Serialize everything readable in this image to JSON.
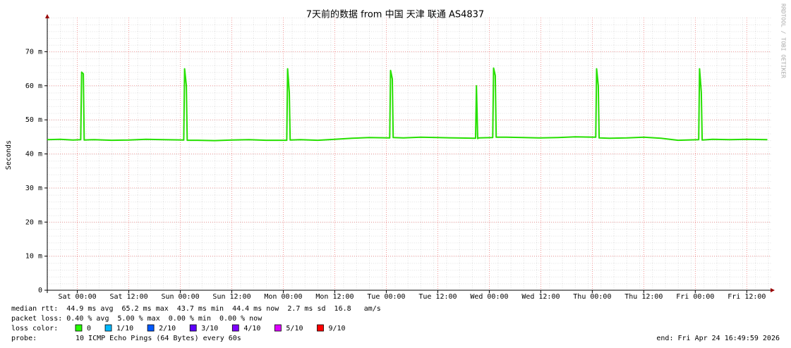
{
  "chart_data": {
    "type": "line",
    "title": "7天前的数据 from 中国 天津 联通 AS4837",
    "y_label": "Seconds",
    "side_note": "RRDTOOL / TOBI OETIKER",
    "x": [
      -7,
      -4,
      -1,
      0.8,
      1.0,
      1.4,
      1.6,
      4,
      8,
      12,
      16,
      20,
      24.8,
      25,
      25.4,
      25.6,
      28,
      32,
      36,
      40,
      44,
      48.8,
      49,
      49.4,
      49.6,
      52,
      56,
      60,
      64,
      68,
      72.8,
      73,
      73.4,
      73.6,
      76,
      80,
      84,
      88,
      92.8,
      93,
      93.3,
      93.5,
      96.8,
      97,
      97.4,
      97.6,
      100,
      104,
      108,
      112,
      116,
      120.8,
      121,
      121.4,
      121.6,
      124,
      128,
      132,
      136,
      140,
      144.8,
      145,
      145.4,
      145.6,
      148,
      152,
      156,
      160.8
    ],
    "series": [
      {
        "color": "#26e000",
        "values": [
          44.2,
          44.3,
          44.1,
          44.2,
          64.0,
          63.5,
          44.1,
          44.2,
          44.0,
          44.1,
          44.3,
          44.2,
          44.1,
          65.0,
          60.0,
          44.0,
          44.0,
          43.9,
          44.1,
          44.2,
          44.0,
          44.0,
          65.0,
          58.0,
          44.1,
          44.2,
          44.0,
          44.3,
          44.6,
          44.8,
          44.7,
          64.5,
          62.0,
          44.8,
          44.7,
          44.9,
          44.8,
          44.7,
          44.6,
          60.0,
          44.5,
          44.7,
          44.8,
          65.2,
          63.0,
          44.9,
          44.9,
          44.8,
          44.7,
          44.8,
          45.0,
          44.9,
          65.0,
          60.0,
          44.7,
          44.6,
          44.7,
          44.9,
          44.6,
          44.0,
          44.2,
          65.0,
          58.0,
          44.1,
          44.3,
          44.2,
          44.3,
          44.2
        ]
      }
    ],
    "xlim": [
      -7,
      161.7
    ],
    "xticks": [
      {
        "value": 0,
        "label": "Sat 00:00"
      },
      {
        "value": 12,
        "label": "Sat 12:00"
      },
      {
        "value": 24,
        "label": "Sun 00:00"
      },
      {
        "value": 36,
        "label": "Sun 12:00"
      },
      {
        "value": 48,
        "label": "Mon 00:00"
      },
      {
        "value": 60,
        "label": "Mon 12:00"
      },
      {
        "value": 72,
        "label": "Tue 00:00"
      },
      {
        "value": 84,
        "label": "Tue 12:00"
      },
      {
        "value": 96,
        "label": "Wed 00:00"
      },
      {
        "value": 108,
        "label": "Wed 12:00"
      },
      {
        "value": 120,
        "label": "Thu 00:00"
      },
      {
        "value": 132,
        "label": "Thu 12:00"
      },
      {
        "value": 144,
        "label": "Fri 00:00"
      },
      {
        "value": 156,
        "label": "Fri 12:00"
      }
    ],
    "ylim": [
      0,
      80
    ],
    "yticks": [
      0,
      {
        "value": 10,
        "label": "10 m"
      },
      {
        "value": 20,
        "label": "20 m"
      },
      {
        "value": 30,
        "label": "30 m"
      },
      {
        "value": 40,
        "label": "40 m"
      },
      {
        "value": 50,
        "label": "50 m"
      },
      {
        "value": 60,
        "label": "60 m"
      },
      {
        "value": 70,
        "label": "70 m"
      }
    ],
    "grid": true,
    "stats": [
      "median rtt:  44.9 ms avg  65.2 ms max  43.7 ms min  44.4 ms now  2.7 ms sd  16.8   am/s",
      "packet loss: 0.40 % avg  5.00 % max  0.00 % min  0.00 % now"
    ],
    "legend": {
      "label": "loss color:",
      "items": [
        {
          "label": "0",
          "color": "#26ff00"
        },
        {
          "label": "1/10",
          "color": "#00b8ff"
        },
        {
          "label": "2/10",
          "color": "#0059ff"
        },
        {
          "label": "3/10",
          "color": "#5e00ff"
        },
        {
          "label": "4/10",
          "color": "#7e00ff"
        },
        {
          "label": "5/10",
          "color": "#dd00ff"
        },
        {
          "label": "9/10",
          "color": "#ff0000"
        }
      ]
    },
    "probe_label": "probe:",
    "probe": "10 ICMP Echo Pings (64 Bytes) every 60s",
    "end": "end: Fri Apr 24 16:49:59 2026"
  }
}
